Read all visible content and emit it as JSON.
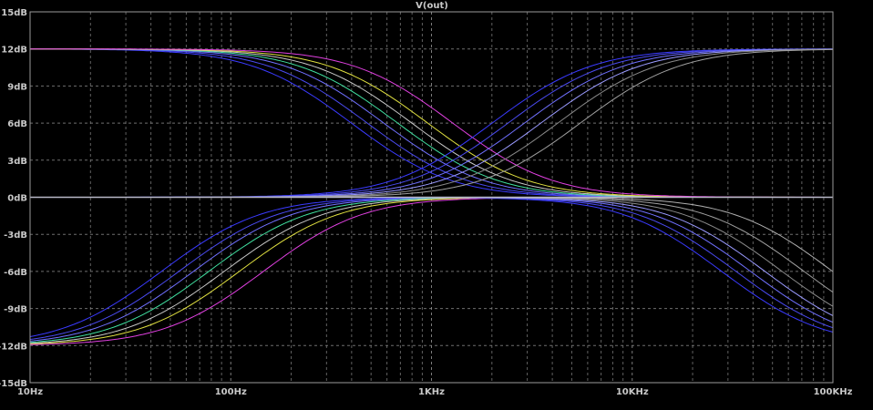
{
  "chart_data": {
    "type": "line",
    "title": "V(out)",
    "xscale": "log",
    "xlim": [
      10,
      100000
    ],
    "ylim": [
      -15,
      15
    ],
    "grid": true,
    "x_ticks": [
      "10Hz",
      "100Hz",
      "1KHz",
      "10KHz",
      "100KHz"
    ],
    "y_ticks": [
      "15dB",
      "12dB",
      "9dB",
      "6dB",
      "3dB",
      "0dB",
      "-3dB",
      "-6dB",
      "-9dB",
      "-12dB",
      "-15dB"
    ],
    "colors": {
      "background": "#000000",
      "grid": "#8a8a8a",
      "axis_text": "#c8c8c8",
      "flat_trace": "#b8b8c8"
    },
    "families": [
      {
        "shape": "lowshelf_boost",
        "gain_db": 12,
        "corners_hz": [
          200,
          240,
          290,
          340,
          400,
          480,
          640
        ],
        "colors": [
          "#3a3aff",
          "#4a4af0",
          "#7070ff",
          "#40e0a0",
          "#c8c8c8",
          "#e0e040",
          "#e040e0"
        ]
      },
      {
        "shape": "lowshelf_cut",
        "gain_db": -12,
        "corners_hz": [
          90,
          110,
          130,
          155,
          185,
          220,
          290
        ],
        "colors": [
          "#3a3aff",
          "#4a4af0",
          "#7070ff",
          "#40e0a0",
          "#c8c8c8",
          "#e0e040",
          "#e040e0"
        ]
      },
      {
        "shape": "highshelf_boost",
        "gain_db": 12,
        "corners_hz": [
          4000,
          4800,
          5800,
          7000,
          8500,
          11000
        ],
        "colors": [
          "#3a3aff",
          "#4a4af0",
          "#7070ff",
          "#9a9aff",
          "#8a8a8a",
          "#a0a0a0"
        ]
      },
      {
        "shape": "highshelf_cut",
        "gain_db": -12,
        "corners_hz": [
          14000,
          16500,
          19500,
          23000,
          28000,
          36000,
          50000
        ],
        "colors": [
          "#3a3aff",
          "#4a4af0",
          "#7070ff",
          "#9a9aff",
          "#8a8a8a",
          "#a0a0a0",
          "#b0b0b0"
        ]
      }
    ]
  }
}
